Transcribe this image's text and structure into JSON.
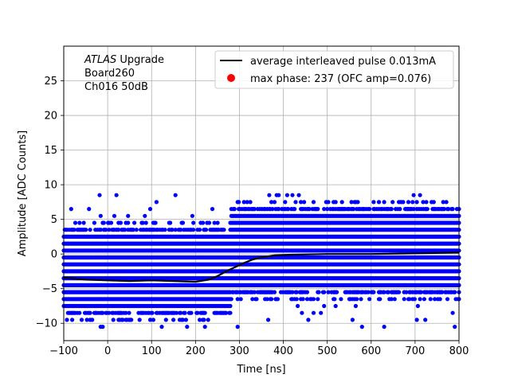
{
  "chart_data": {
    "type": "scatter",
    "xlabel": "Time [ns]",
    "ylabel": "Amplitude [ADC Counts]",
    "xlim": [
      -100,
      800
    ],
    "ylim": [
      -12.5,
      30
    ],
    "xticks": [
      -100,
      0,
      100,
      200,
      300,
      400,
      500,
      600,
      700,
      800
    ],
    "yticks": [
      -10,
      -5,
      0,
      5,
      10,
      15,
      20,
      25
    ],
    "grid": true,
    "legend_position": "top-right",
    "annotation": {
      "atlas": "ATLAS",
      "upgrade": " Upgrade",
      "board": " Board260",
      "channel": " Ch016 50dB"
    },
    "samples": {
      "color": "#0000ff",
      "x_range": [
        -100,
        800
      ],
      "levels": [
        -10.5,
        -9.5,
        -8.5,
        -7.5,
        -6.5,
        -5.5,
        -4.5,
        -3.5,
        -2.5,
        -1.5,
        -0.5,
        0.5,
        1.5,
        2.5,
        3.5,
        4.5,
        5.5,
        6.5,
        7.5,
        8.5
      ],
      "dense_range_before_rise": [
        -7.5,
        2.5
      ],
      "dense_range_after_rise": [
        -4.5,
        5.5
      ]
    },
    "series": [
      {
        "name": "average interleaved pulse 0.013mA",
        "color": "#000000",
        "x": [
          -100,
          -50,
          0,
          50,
          100,
          150,
          200,
          230,
          250,
          270,
          290,
          310,
          330,
          350,
          380,
          420,
          500,
          600,
          700,
          800
        ],
        "y": [
          -3.4,
          -3.7,
          -3.8,
          -3.9,
          -3.8,
          -3.9,
          -4.0,
          -3.7,
          -3.2,
          -2.5,
          -1.9,
          -1.3,
          -0.8,
          -0.5,
          -0.2,
          -0.1,
          0.0,
          0.0,
          0.1,
          0.2
        ]
      },
      {
        "name": "max phase: 237 (OFC amp=0.076)",
        "color": "#ff0000",
        "x": [],
        "y": []
      }
    ]
  }
}
